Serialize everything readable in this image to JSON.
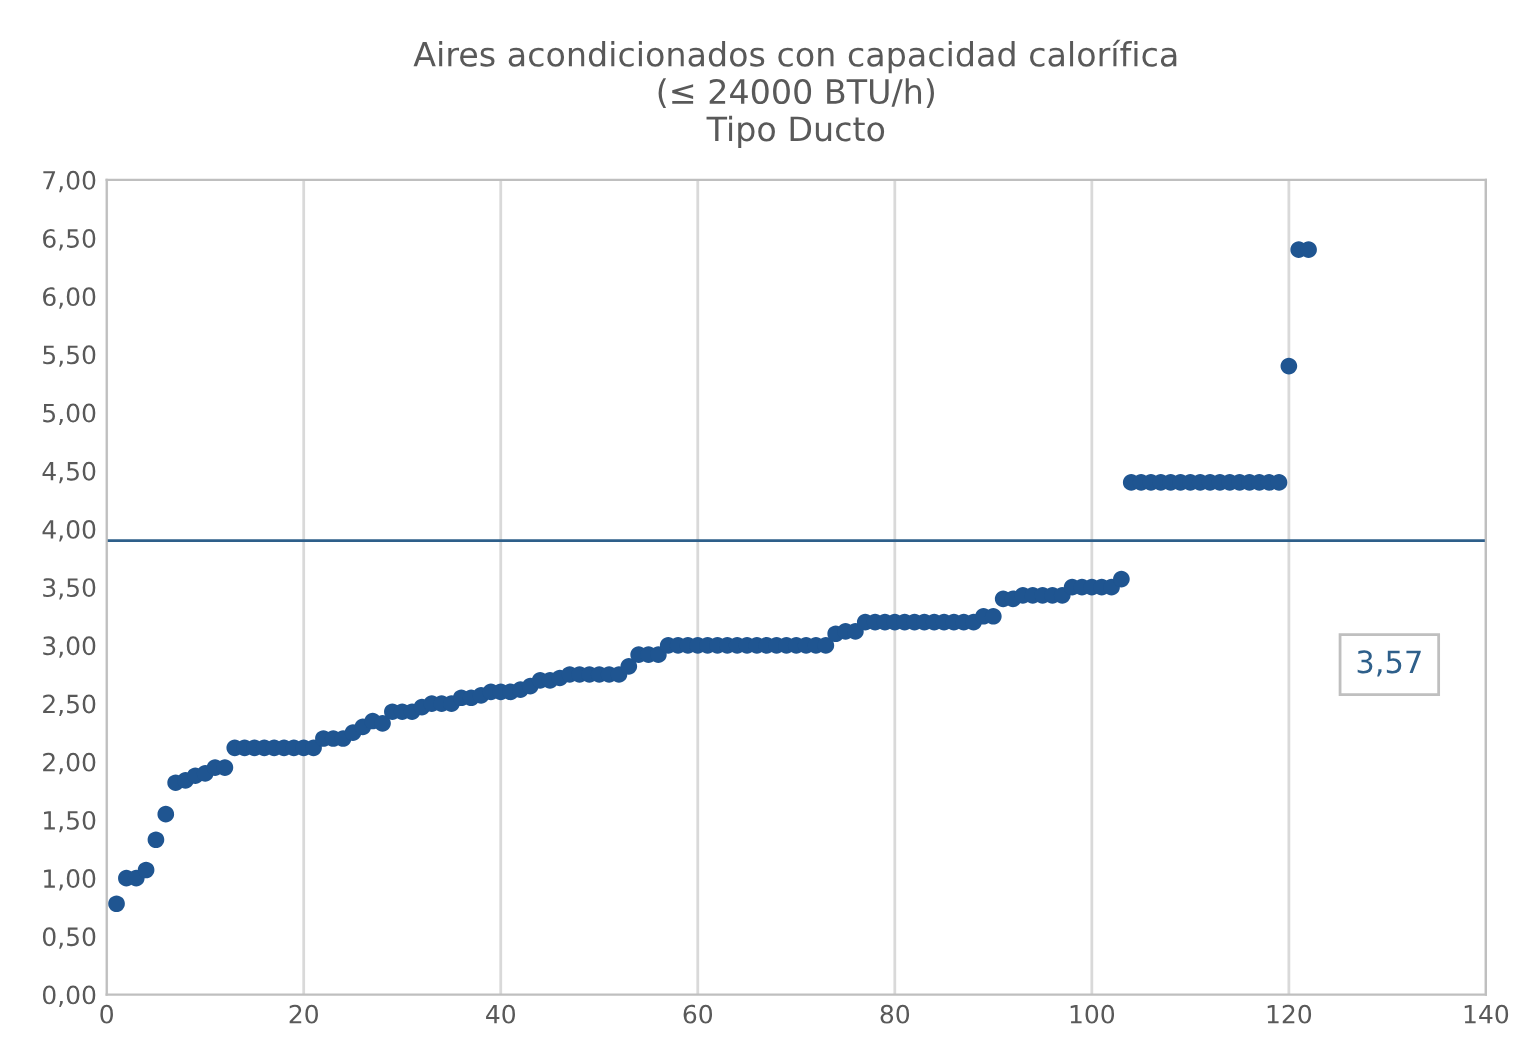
{
  "chart_data": {
    "type": "scatter",
    "title": "Aires acondicionados con capacidad calorífica\n(≤ 24000 BTU/h)\nTipo Ducto",
    "x": [
      1,
      2,
      3,
      4,
      5,
      6,
      7,
      8,
      9,
      10,
      11,
      12,
      13,
      14,
      15,
      16,
      17,
      18,
      19,
      20,
      21,
      22,
      23,
      24,
      25,
      26,
      27,
      28,
      29,
      30,
      31,
      32,
      33,
      34,
      35,
      36,
      37,
      38,
      39,
      40,
      41,
      42,
      43,
      44,
      45,
      46,
      47,
      48,
      49,
      50,
      51,
      52,
      53,
      54,
      55,
      56,
      57,
      58,
      59,
      60,
      61,
      62,
      63,
      64,
      65,
      66,
      67,
      68,
      69,
      70,
      71,
      72,
      73,
      74,
      75,
      76,
      77,
      78,
      79,
      80,
      81,
      82,
      83,
      84,
      85,
      86,
      87,
      88,
      89,
      90,
      91,
      92,
      93,
      94,
      95,
      96,
      97,
      98,
      99,
      100,
      101,
      102,
      103,
      104,
      105,
      106,
      107,
      108,
      109,
      110,
      111,
      112,
      113,
      114,
      115,
      116,
      117,
      118,
      119,
      120,
      121,
      122
    ],
    "series": [
      {
        "color": "#1f5591",
        "values": [
          0.78,
          1.0,
          1.0,
          1.07,
          1.33,
          1.55,
          1.82,
          1.84,
          1.88,
          1.9,
          1.95,
          1.95,
          2.12,
          2.12,
          2.12,
          2.12,
          2.12,
          2.12,
          2.12,
          2.12,
          2.12,
          2.2,
          2.2,
          2.2,
          2.25,
          2.3,
          2.35,
          2.33,
          2.43,
          2.43,
          2.43,
          2.47,
          2.5,
          2.5,
          2.5,
          2.55,
          2.55,
          2.57,
          2.6,
          2.6,
          2.6,
          2.62,
          2.65,
          2.7,
          2.7,
          2.72,
          2.75,
          2.75,
          2.75,
          2.75,
          2.75,
          2.75,
          2.82,
          2.92,
          2.92,
          2.92,
          3.0,
          3.0,
          3.0,
          3.0,
          3.0,
          3.0,
          3.0,
          3.0,
          3.0,
          3.0,
          3.0,
          3.0,
          3.0,
          3.0,
          3.0,
          3.0,
          3.0,
          3.1,
          3.12,
          3.12,
          3.2,
          3.2,
          3.2,
          3.2,
          3.2,
          3.2,
          3.2,
          3.2,
          3.2,
          3.2,
          3.2,
          3.2,
          3.25,
          3.25,
          3.4,
          3.4,
          3.43,
          3.43,
          3.43,
          3.43,
          3.43,
          3.5,
          3.5,
          3.5,
          3.5,
          3.5,
          3.57,
          4.4,
          4.4,
          4.4,
          4.4,
          4.4,
          4.4,
          4.4,
          4.4,
          4.4,
          4.4,
          4.4,
          4.4,
          4.4,
          4.4,
          4.4,
          4.4,
          5.4,
          6.4,
          6.4
        ]
      }
    ],
    "xlim": [
      0,
      140
    ],
    "xticks": [
      0,
      20,
      40,
      60,
      80,
      100,
      120,
      140
    ],
    "ylim": [
      0,
      7
    ],
    "yticks": [
      {
        "value": 0,
        "label": "0,00"
      },
      {
        "value": 0.5,
        "label": "0,50"
      },
      {
        "value": 1,
        "label": "1,00"
      },
      {
        "value": 1.5,
        "label": "1,50"
      },
      {
        "value": 2,
        "label": "2,00"
      },
      {
        "value": 2.5,
        "label": "2,50"
      },
      {
        "value": 3,
        "label": "3,00"
      },
      {
        "value": 3.5,
        "label": "3,50"
      },
      {
        "value": 4,
        "label": "4,00"
      },
      {
        "value": 4.5,
        "label": "4,50"
      },
      {
        "value": 5,
        "label": "5,00"
      },
      {
        "value": 5.5,
        "label": "5,50"
      },
      {
        "value": 6,
        "label": "6,00"
      },
      {
        "value": 6.5,
        "label": "6,50"
      },
      {
        "value": 7,
        "label": "7,00"
      }
    ],
    "ref_lines": [
      {
        "axis": "y",
        "value": 3.9,
        "color": "#2e5f8a",
        "line_style": "solid"
      }
    ],
    "annotations": [
      "3,57"
    ],
    "grid": "x",
    "marker": "circle",
    "legend": false
  }
}
